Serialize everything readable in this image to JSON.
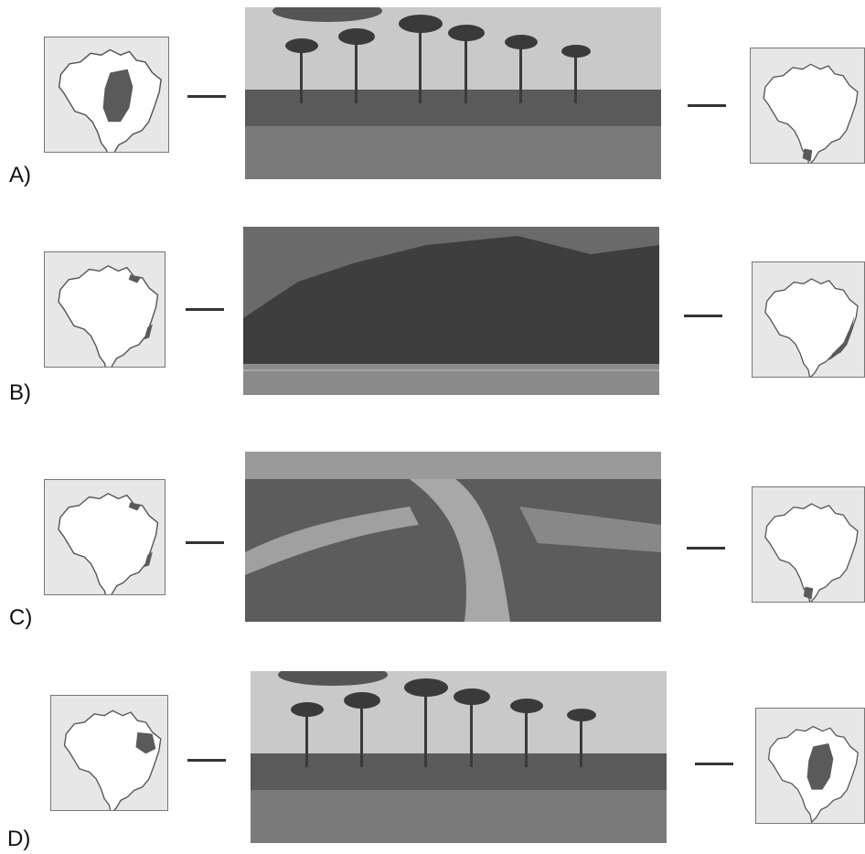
{
  "options": [
    {
      "label": "A)",
      "left_map_icon": "brazil-map-icon",
      "photo_icon": "araucaria-forest-photo",
      "right_map_icon": "brazil-map-icon",
      "left_highlight": "center-south",
      "right_highlight": "far-south"
    },
    {
      "label": "B)",
      "left_map_icon": "brazil-map-icon",
      "photo_icon": "dense-coastal-forest-photo",
      "right_map_icon": "brazil-map-icon",
      "left_highlight": "coastal-strip",
      "right_highlight": "atlantic-coast"
    },
    {
      "label": "C)",
      "left_map_icon": "brazil-map-icon",
      "photo_icon": "mangrove-river-photo",
      "right_map_icon": "brazil-map-icon",
      "left_highlight": "coastal-strip",
      "right_highlight": "far-south"
    },
    {
      "label": "D)",
      "left_map_icon": "brazil-map-icon",
      "photo_icon": "araucaria-forest-photo",
      "right_map_icon": "brazil-map-icon",
      "left_highlight": "northeast",
      "right_highlight": "center-south"
    }
  ],
  "colors": {
    "map_bg": "#e7e7e7",
    "land": "#ffffff",
    "border": "#777777",
    "highlight": "#5a5a5a",
    "dash": "#333333"
  }
}
